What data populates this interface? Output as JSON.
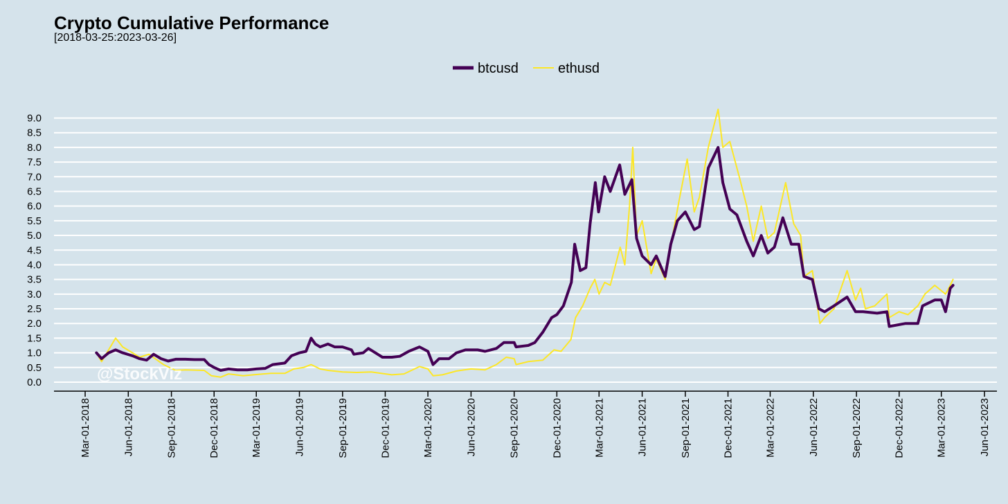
{
  "chart_data": {
    "type": "line",
    "title": "Crypto Cumulative Performance",
    "subtitle": "[2018-03-25:2023-03-26]",
    "watermark": "@StockViz",
    "legend_position": "top-center",
    "grid": {
      "horizontal": true,
      "vertical": false
    },
    "colors": {
      "background": "#d5e3eb",
      "grid": "#ffffff",
      "btcusd": "#440154",
      "ethusd": "#fde725"
    },
    "ylim": [
      0.0,
      9.0
    ],
    "yticks": [
      "0.0",
      "0.5",
      "1.0",
      "1.5",
      "2.0",
      "2.5",
      "3.0",
      "3.5",
      "4.0",
      "4.5",
      "5.0",
      "5.5",
      "6.0",
      "6.5",
      "7.0",
      "7.5",
      "8.0",
      "8.5",
      "9.0"
    ],
    "xlim": [
      "2018-03-01",
      "2023-06-01"
    ],
    "xticks": [
      "Mar-01-2018",
      "Jun-01-2018",
      "Sep-01-2018",
      "Dec-01-2018",
      "Mar-01-2019",
      "Jun-01-2019",
      "Sep-01-2019",
      "Dec-01-2019",
      "Mar-01-2020",
      "Jun-01-2020",
      "Sep-01-2020",
      "Dec-01-2020",
      "Mar-01-2021",
      "Jun-01-2021",
      "Sep-01-2021",
      "Dec-01-2021",
      "Mar-01-2022",
      "Jun-01-2022",
      "Sep-01-2022",
      "Dec-01-2022",
      "Mar-01-2023",
      "Jun-01-2023"
    ],
    "series": [
      {
        "name": "btcusd",
        "points": [
          [
            "2018-03-25",
            1.0
          ],
          [
            "2018-04-05",
            0.8
          ],
          [
            "2018-04-20",
            1.0
          ],
          [
            "2018-05-05",
            1.1
          ],
          [
            "2018-05-20",
            1.0
          ],
          [
            "2018-06-10",
            0.9
          ],
          [
            "2018-06-25",
            0.8
          ],
          [
            "2018-07-10",
            0.75
          ],
          [
            "2018-07-25",
            0.95
          ],
          [
            "2018-08-10",
            0.8
          ],
          [
            "2018-08-25",
            0.72
          ],
          [
            "2018-09-10",
            0.78
          ],
          [
            "2018-10-01",
            0.78
          ],
          [
            "2018-10-20",
            0.77
          ],
          [
            "2018-11-10",
            0.77
          ],
          [
            "2018-11-20",
            0.6
          ],
          [
            "2018-12-01",
            0.5
          ],
          [
            "2018-12-15",
            0.4
          ],
          [
            "2019-01-01",
            0.45
          ],
          [
            "2019-01-20",
            0.42
          ],
          [
            "2019-02-10",
            0.42
          ],
          [
            "2019-03-01",
            0.45
          ],
          [
            "2019-03-20",
            0.47
          ],
          [
            "2019-04-05",
            0.6
          ],
          [
            "2019-05-01",
            0.65
          ],
          [
            "2019-05-15",
            0.9
          ],
          [
            "2019-06-01",
            1.0
          ],
          [
            "2019-06-15",
            1.05
          ],
          [
            "2019-06-26",
            1.5
          ],
          [
            "2019-07-05",
            1.3
          ],
          [
            "2019-07-15",
            1.2
          ],
          [
            "2019-08-01",
            1.3
          ],
          [
            "2019-08-15",
            1.2
          ],
          [
            "2019-09-01",
            1.2
          ],
          [
            "2019-09-20",
            1.1
          ],
          [
            "2019-09-25",
            0.95
          ],
          [
            "2019-10-15",
            1.0
          ],
          [
            "2019-10-26",
            1.15
          ],
          [
            "2019-11-10",
            1.0
          ],
          [
            "2019-11-25",
            0.85
          ],
          [
            "2019-12-15",
            0.85
          ],
          [
            "2020-01-01",
            0.88
          ],
          [
            "2020-01-20",
            1.05
          ],
          [
            "2020-02-12",
            1.2
          ],
          [
            "2020-03-01",
            1.05
          ],
          [
            "2020-03-12",
            0.6
          ],
          [
            "2020-03-25",
            0.8
          ],
          [
            "2020-04-15",
            0.8
          ],
          [
            "2020-05-01",
            1.0
          ],
          [
            "2020-05-20",
            1.1
          ],
          [
            "2020-06-15",
            1.1
          ],
          [
            "2020-07-01",
            1.05
          ],
          [
            "2020-07-25",
            1.15
          ],
          [
            "2020-08-10",
            1.35
          ],
          [
            "2020-09-01",
            1.35
          ],
          [
            "2020-09-05",
            1.2
          ],
          [
            "2020-10-01",
            1.25
          ],
          [
            "2020-10-15",
            1.35
          ],
          [
            "2020-11-01",
            1.7
          ],
          [
            "2020-11-20",
            2.2
          ],
          [
            "2020-12-01",
            2.3
          ],
          [
            "2020-12-15",
            2.6
          ],
          [
            "2021-01-01",
            3.4
          ],
          [
            "2021-01-08",
            4.7
          ],
          [
            "2021-01-20",
            3.8
          ],
          [
            "2021-02-01",
            3.9
          ],
          [
            "2021-02-10",
            5.4
          ],
          [
            "2021-02-21",
            6.8
          ],
          [
            "2021-02-28",
            5.8
          ],
          [
            "2021-03-13",
            7.0
          ],
          [
            "2021-03-25",
            6.5
          ],
          [
            "2021-04-14",
            7.4
          ],
          [
            "2021-04-25",
            6.4
          ],
          [
            "2021-05-10",
            6.9
          ],
          [
            "2021-05-20",
            4.9
          ],
          [
            "2021-06-01",
            4.3
          ],
          [
            "2021-06-20",
            4.0
          ],
          [
            "2021-07-01",
            4.3
          ],
          [
            "2021-07-20",
            3.6
          ],
          [
            "2021-08-01",
            4.7
          ],
          [
            "2021-08-15",
            5.5
          ],
          [
            "2021-09-01",
            5.8
          ],
          [
            "2021-09-20",
            5.2
          ],
          [
            "2021-10-01",
            5.3
          ],
          [
            "2021-10-20",
            7.3
          ],
          [
            "2021-11-10",
            8.0
          ],
          [
            "2021-11-20",
            6.8
          ],
          [
            "2021-12-05",
            5.9
          ],
          [
            "2021-12-20",
            5.7
          ],
          [
            "2022-01-10",
            4.8
          ],
          [
            "2022-01-24",
            4.3
          ],
          [
            "2022-02-10",
            5.0
          ],
          [
            "2022-02-24",
            4.4
          ],
          [
            "2022-03-10",
            4.6
          ],
          [
            "2022-03-28",
            5.6
          ],
          [
            "2022-04-15",
            4.7
          ],
          [
            "2022-05-01",
            4.7
          ],
          [
            "2022-05-12",
            3.6
          ],
          [
            "2022-05-30",
            3.5
          ],
          [
            "2022-06-13",
            2.5
          ],
          [
            "2022-06-25",
            2.4
          ],
          [
            "2022-07-15",
            2.6
          ],
          [
            "2022-08-12",
            2.9
          ],
          [
            "2022-08-30",
            2.4
          ],
          [
            "2022-09-15",
            2.4
          ],
          [
            "2022-10-15",
            2.35
          ],
          [
            "2022-11-05",
            2.4
          ],
          [
            "2022-11-10",
            1.9
          ],
          [
            "2022-12-15",
            2.0
          ],
          [
            "2023-01-10",
            2.0
          ],
          [
            "2023-01-20",
            2.6
          ],
          [
            "2023-02-15",
            2.8
          ],
          [
            "2023-03-01",
            2.8
          ],
          [
            "2023-03-10",
            2.4
          ],
          [
            "2023-03-20",
            3.2
          ],
          [
            "2023-03-26",
            3.3
          ]
        ]
      },
      {
        "name": "ethusd",
        "points": [
          [
            "2018-03-25",
            1.0
          ],
          [
            "2018-04-05",
            0.7
          ],
          [
            "2018-04-20",
            1.1
          ],
          [
            "2018-05-05",
            1.5
          ],
          [
            "2018-05-20",
            1.2
          ],
          [
            "2018-06-10",
            1.0
          ],
          [
            "2018-06-25",
            0.85
          ],
          [
            "2018-07-15",
            0.95
          ],
          [
            "2018-08-15",
            0.6
          ],
          [
            "2018-09-10",
            0.4
          ],
          [
            "2018-10-01",
            0.42
          ],
          [
            "2018-11-10",
            0.4
          ],
          [
            "2018-11-25",
            0.22
          ],
          [
            "2018-12-15",
            0.17
          ],
          [
            "2019-01-01",
            0.28
          ],
          [
            "2019-02-01",
            0.22
          ],
          [
            "2019-03-01",
            0.26
          ],
          [
            "2019-04-01",
            0.3
          ],
          [
            "2019-05-01",
            0.3
          ],
          [
            "2019-05-20",
            0.45
          ],
          [
            "2019-06-10",
            0.5
          ],
          [
            "2019-06-26",
            0.6
          ],
          [
            "2019-07-15",
            0.45
          ],
          [
            "2019-08-01",
            0.4
          ],
          [
            "2019-09-01",
            0.35
          ],
          [
            "2019-10-01",
            0.33
          ],
          [
            "2019-11-01",
            0.35
          ],
          [
            "2019-12-15",
            0.25
          ],
          [
            "2020-01-10",
            0.28
          ],
          [
            "2020-02-12",
            0.53
          ],
          [
            "2020-03-01",
            0.45
          ],
          [
            "2020-03-12",
            0.22
          ],
          [
            "2020-04-01",
            0.25
          ],
          [
            "2020-05-01",
            0.38
          ],
          [
            "2020-06-01",
            0.45
          ],
          [
            "2020-07-01",
            0.42
          ],
          [
            "2020-07-25",
            0.6
          ],
          [
            "2020-08-15",
            0.85
          ],
          [
            "2020-09-01",
            0.8
          ],
          [
            "2020-09-05",
            0.6
          ],
          [
            "2020-10-01",
            0.7
          ],
          [
            "2020-11-01",
            0.75
          ],
          [
            "2020-11-25",
            1.1
          ],
          [
            "2020-12-10",
            1.05
          ],
          [
            "2020-12-31",
            1.45
          ],
          [
            "2021-01-10",
            2.2
          ],
          [
            "2021-01-25",
            2.6
          ],
          [
            "2021-02-10",
            3.2
          ],
          [
            "2021-02-20",
            3.5
          ],
          [
            "2021-03-01",
            3.0
          ],
          [
            "2021-03-13",
            3.4
          ],
          [
            "2021-03-25",
            3.3
          ],
          [
            "2021-04-15",
            4.6
          ],
          [
            "2021-04-25",
            4.0
          ],
          [
            "2021-05-05",
            6.0
          ],
          [
            "2021-05-12",
            8.0
          ],
          [
            "2021-05-20",
            5.0
          ],
          [
            "2021-06-01",
            5.5
          ],
          [
            "2021-06-20",
            3.7
          ],
          [
            "2021-07-01",
            4.2
          ],
          [
            "2021-07-20",
            3.5
          ],
          [
            "2021-08-05",
            5.0
          ],
          [
            "2021-08-20",
            6.3
          ],
          [
            "2021-09-05",
            7.6
          ],
          [
            "2021-09-20",
            5.8
          ],
          [
            "2021-10-01",
            6.3
          ],
          [
            "2021-10-20",
            8.0
          ],
          [
            "2021-11-10",
            9.3
          ],
          [
            "2021-11-20",
            8.0
          ],
          [
            "2021-12-05",
            8.2
          ],
          [
            "2021-12-25",
            7.0
          ],
          [
            "2022-01-10",
            6.0
          ],
          [
            "2022-01-24",
            4.8
          ],
          [
            "2022-02-10",
            6.0
          ],
          [
            "2022-02-24",
            4.9
          ],
          [
            "2022-03-10",
            5.1
          ],
          [
            "2022-04-03",
            6.8
          ],
          [
            "2022-04-20",
            5.4
          ],
          [
            "2022-05-05",
            5.0
          ],
          [
            "2022-05-12",
            3.6
          ],
          [
            "2022-05-30",
            3.8
          ],
          [
            "2022-06-15",
            2.0
          ],
          [
            "2022-06-25",
            2.2
          ],
          [
            "2022-07-15",
            2.5
          ],
          [
            "2022-08-12",
            3.8
          ],
          [
            "2022-08-30",
            2.8
          ],
          [
            "2022-09-10",
            3.2
          ],
          [
            "2022-09-20",
            2.5
          ],
          [
            "2022-10-10",
            2.6
          ],
          [
            "2022-11-05",
            3.0
          ],
          [
            "2022-11-10",
            2.2
          ],
          [
            "2022-12-01",
            2.4
          ],
          [
            "2022-12-20",
            2.3
          ],
          [
            "2023-01-10",
            2.6
          ],
          [
            "2023-01-25",
            3.0
          ],
          [
            "2023-02-15",
            3.3
          ],
          [
            "2023-03-10",
            3.0
          ],
          [
            "2023-03-20",
            3.3
          ],
          [
            "2023-03-26",
            3.5
          ]
        ]
      }
    ]
  }
}
